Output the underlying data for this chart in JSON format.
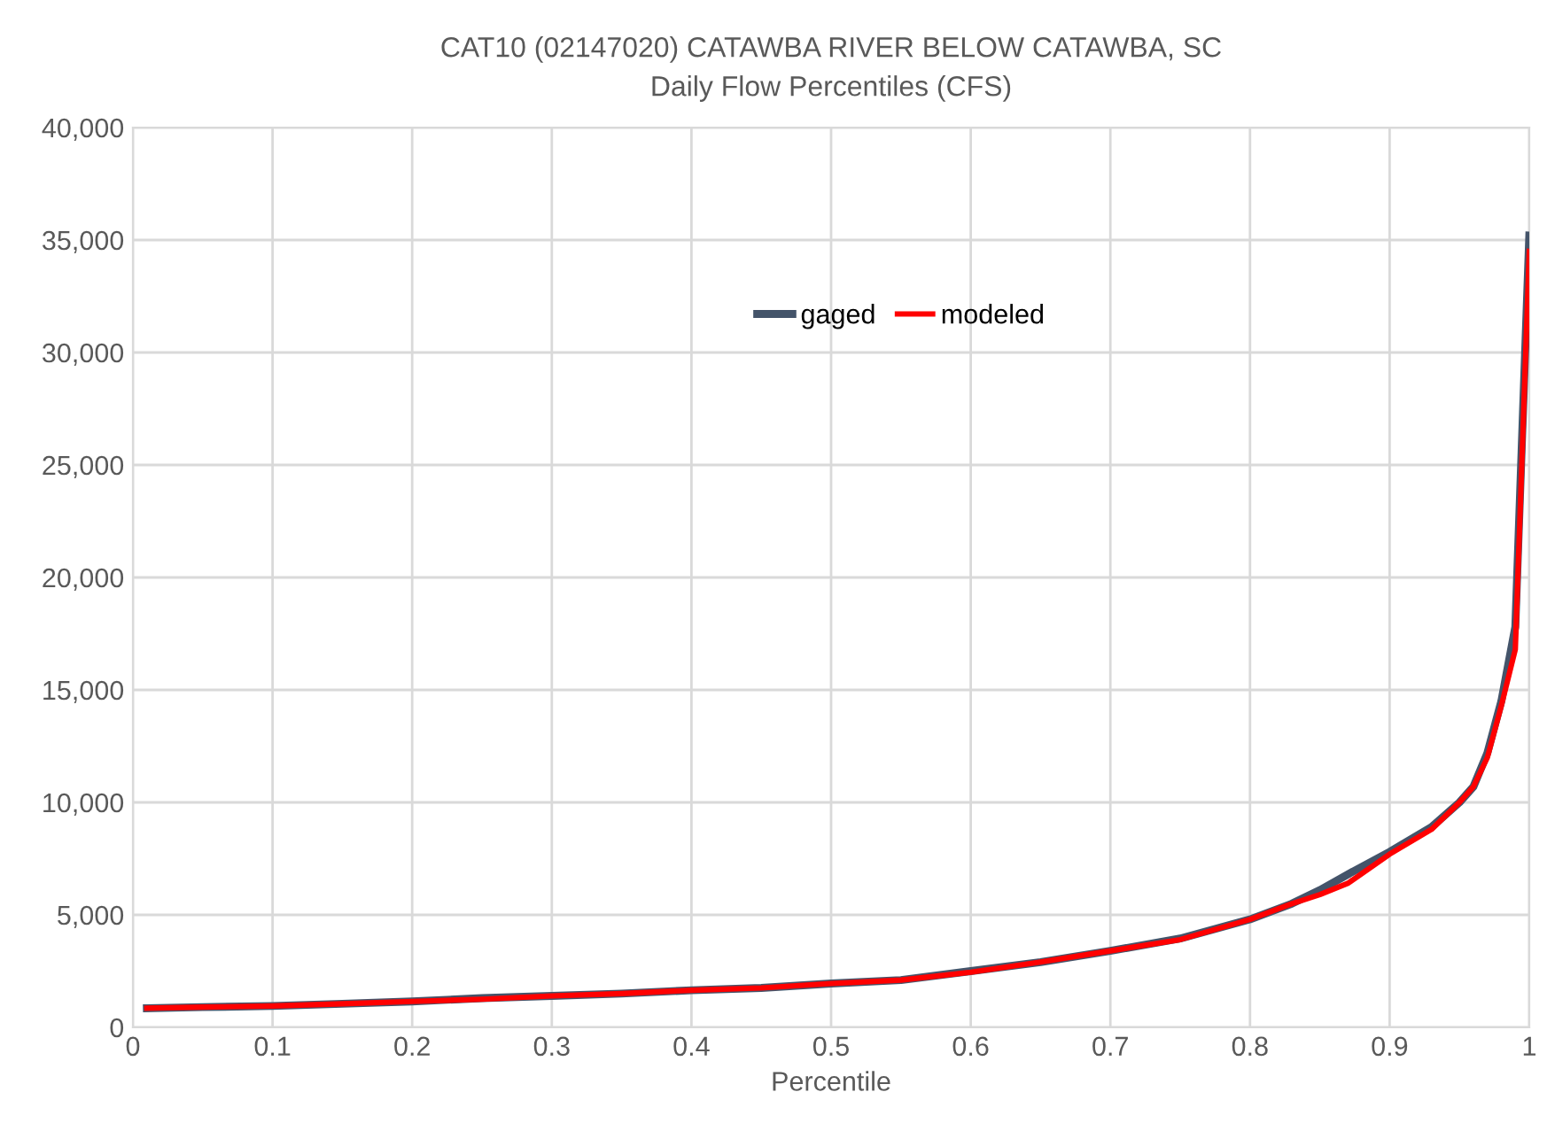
{
  "chart_data": {
    "type": "line",
    "title": "CAT10 (02147020) CATAWBA RIVER BELOW CATAWBA, SC",
    "subtitle": "Daily Flow Percentiles (CFS)",
    "xlabel": "Percentile",
    "x": [
      0.01,
      0.05,
      0.1,
      0.15,
      0.2,
      0.25,
      0.3,
      0.35,
      0.4,
      0.45,
      0.5,
      0.55,
      0.6,
      0.65,
      0.7,
      0.75,
      0.8,
      0.83,
      0.85,
      0.87,
      0.9,
      0.93,
      0.95,
      0.96,
      0.97,
      0.98,
      0.99,
      1.0
    ],
    "series": [
      {
        "name": "gaged",
        "color": "#44546a",
        "values": [
          850,
          900,
          950,
          1050,
          1150,
          1300,
          1400,
          1500,
          1650,
          1750,
          1950,
          2100,
          2500,
          2900,
          3400,
          3950,
          4800,
          5500,
          6100,
          6800,
          7800,
          8900,
          10000,
          10700,
          12200,
          14500,
          17800,
          35200
        ]
      },
      {
        "name": "modeled",
        "color": "#ff0000",
        "values": [
          850,
          900,
          950,
          1050,
          1150,
          1250,
          1400,
          1500,
          1650,
          1750,
          1950,
          2100,
          2450,
          2900,
          3400,
          3900,
          4800,
          5500,
          5900,
          6400,
          7700,
          8800,
          10000,
          10700,
          12000,
          14300,
          16800,
          34500
        ]
      }
    ],
    "xlim": [
      0,
      1
    ],
    "xticks": [
      0,
      0.1,
      0.2,
      0.3,
      0.4,
      0.5,
      0.6,
      0.7,
      0.8,
      0.9,
      1
    ],
    "ylim": [
      0,
      40000
    ],
    "yticks": [
      {
        "value": 0,
        "label": "0"
      },
      {
        "value": 5000,
        "label": "5,000"
      },
      {
        "value": 10000,
        "label": "10,000"
      },
      {
        "value": 15000,
        "label": "15,000"
      },
      {
        "value": 20000,
        "label": "20,000"
      },
      {
        "value": 25000,
        "label": "25,000"
      },
      {
        "value": 30000,
        "label": "30,000"
      },
      {
        "value": 35000,
        "label": "35,000"
      },
      {
        "value": 40000,
        "label": "40,000"
      }
    ],
    "grid": true,
    "legend": "top",
    "line_style": "solid",
    "marker": "none"
  }
}
